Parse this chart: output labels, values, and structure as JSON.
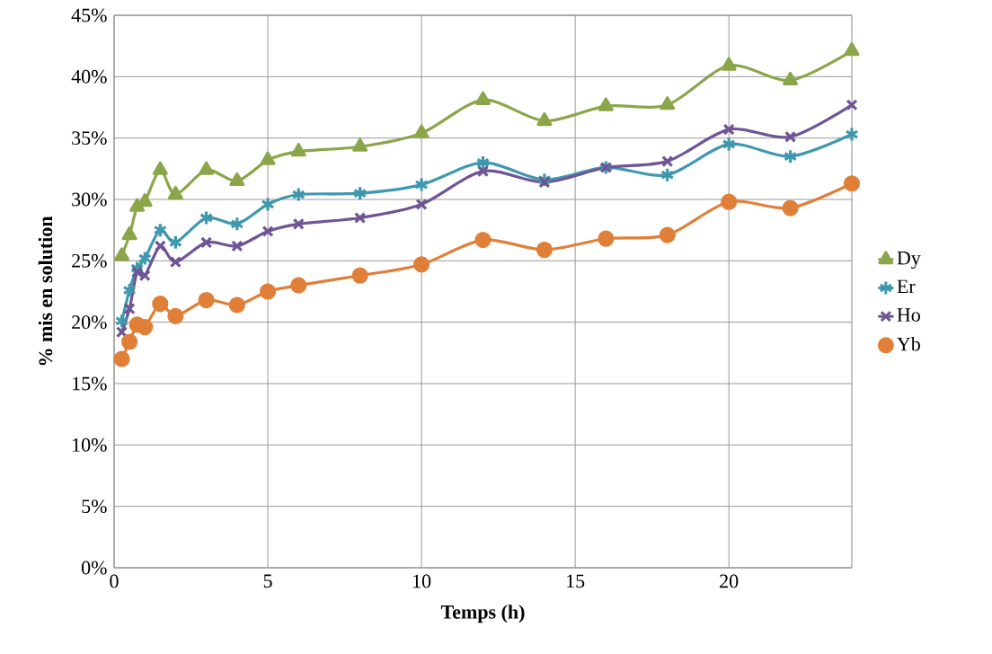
{
  "chart_data": {
    "type": "line",
    "xlabel": "Temps (h)",
    "ylabel": "% mis en solution",
    "x": [
      0.25,
      0.5,
      0.75,
      1,
      1.5,
      2,
      3,
      4,
      5,
      6,
      8,
      10,
      12,
      14,
      16,
      18,
      20,
      22,
      24
    ],
    "series": [
      {
        "name": "Dy",
        "color": "#8ba64a",
        "marker": "triangle",
        "values": [
          25.4,
          27.1,
          29.4,
          29.8,
          32.4,
          30.4,
          32.4,
          31.5,
          33.2,
          33.9,
          34.3,
          35.4,
          38.1,
          36.4,
          37.6,
          37.7,
          40.9,
          39.7,
          42.1
        ]
      },
      {
        "name": "Er",
        "color": "#3f98ae",
        "marker": "cross",
        "values": [
          20.1,
          22.6,
          24.4,
          25.2,
          27.5,
          26.5,
          28.5,
          28.0,
          29.6,
          30.4,
          30.5,
          31.2,
          33.0,
          31.6,
          32.6,
          32.0,
          34.5,
          33.5,
          35.3
        ]
      },
      {
        "name": "Ho",
        "color": "#6f5496",
        "marker": "cross",
        "values": [
          19.2,
          21.1,
          24.1,
          23.8,
          26.2,
          24.9,
          26.5,
          26.2,
          27.4,
          28.0,
          28.5,
          29.6,
          32.3,
          31.4,
          32.6,
          33.1,
          35.7,
          35.1,
          37.7
        ]
      },
      {
        "name": "Yb",
        "color": "#e07f38",
        "marker": "circle",
        "values": [
          17.0,
          18.4,
          19.8,
          19.6,
          21.5,
          20.5,
          21.8,
          21.4,
          22.5,
          23.0,
          23.8,
          24.7,
          26.7,
          25.9,
          26.8,
          27.1,
          29.8,
          29.3,
          31.3
        ]
      }
    ],
    "xlim": [
      0,
      24
    ],
    "xticks": [
      0,
      5,
      10,
      15,
      20
    ],
    "ylim": [
      0,
      45
    ],
    "yticks": [
      {
        "value": 0,
        "label": "0%"
      },
      {
        "value": 5,
        "label": "5%"
      },
      {
        "value": 10,
        "label": "10%"
      },
      {
        "value": 15,
        "label": "15%"
      },
      {
        "value": 20,
        "label": "20%"
      },
      {
        "value": 25,
        "label": "25%"
      },
      {
        "value": 30,
        "label": "30%"
      },
      {
        "value": 35,
        "label": "35%"
      },
      {
        "value": 40,
        "label": "40%"
      },
      {
        "value": 45,
        "label": "45%"
      }
    ],
    "grid": true,
    "legend": "right",
    "line_style": "solid"
  }
}
